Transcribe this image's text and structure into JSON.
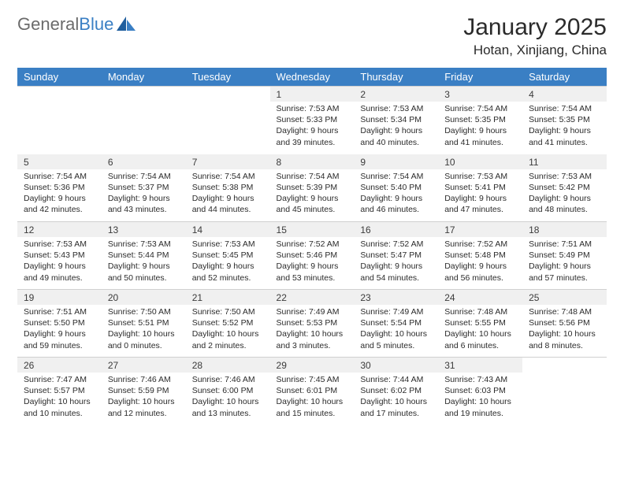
{
  "logo": {
    "text_gray": "General",
    "text_blue": "Blue"
  },
  "title": "January 2025",
  "location": "Hotan, Xinjiang, China",
  "colors": {
    "header_bg": "#3a7fc4",
    "header_fg": "#ffffff",
    "daynum_bg": "#f0f0f0",
    "text": "#2b2b2b",
    "border": "#d0d0d0"
  },
  "dow": [
    "Sunday",
    "Monday",
    "Tuesday",
    "Wednesday",
    "Thursday",
    "Friday",
    "Saturday"
  ],
  "weeks": [
    [
      null,
      null,
      null,
      {
        "n": "1",
        "sr": "7:53 AM",
        "ss": "5:33 PM",
        "dl": "9 hours and 39 minutes."
      },
      {
        "n": "2",
        "sr": "7:53 AM",
        "ss": "5:34 PM",
        "dl": "9 hours and 40 minutes."
      },
      {
        "n": "3",
        "sr": "7:54 AM",
        "ss": "5:35 PM",
        "dl": "9 hours and 41 minutes."
      },
      {
        "n": "4",
        "sr": "7:54 AM",
        "ss": "5:35 PM",
        "dl": "9 hours and 41 minutes."
      }
    ],
    [
      {
        "n": "5",
        "sr": "7:54 AM",
        "ss": "5:36 PM",
        "dl": "9 hours and 42 minutes."
      },
      {
        "n": "6",
        "sr": "7:54 AM",
        "ss": "5:37 PM",
        "dl": "9 hours and 43 minutes."
      },
      {
        "n": "7",
        "sr": "7:54 AM",
        "ss": "5:38 PM",
        "dl": "9 hours and 44 minutes."
      },
      {
        "n": "8",
        "sr": "7:54 AM",
        "ss": "5:39 PM",
        "dl": "9 hours and 45 minutes."
      },
      {
        "n": "9",
        "sr": "7:54 AM",
        "ss": "5:40 PM",
        "dl": "9 hours and 46 minutes."
      },
      {
        "n": "10",
        "sr": "7:53 AM",
        "ss": "5:41 PM",
        "dl": "9 hours and 47 minutes."
      },
      {
        "n": "11",
        "sr": "7:53 AM",
        "ss": "5:42 PM",
        "dl": "9 hours and 48 minutes."
      }
    ],
    [
      {
        "n": "12",
        "sr": "7:53 AM",
        "ss": "5:43 PM",
        "dl": "9 hours and 49 minutes."
      },
      {
        "n": "13",
        "sr": "7:53 AM",
        "ss": "5:44 PM",
        "dl": "9 hours and 50 minutes."
      },
      {
        "n": "14",
        "sr": "7:53 AM",
        "ss": "5:45 PM",
        "dl": "9 hours and 52 minutes."
      },
      {
        "n": "15",
        "sr": "7:52 AM",
        "ss": "5:46 PM",
        "dl": "9 hours and 53 minutes."
      },
      {
        "n": "16",
        "sr": "7:52 AM",
        "ss": "5:47 PM",
        "dl": "9 hours and 54 minutes."
      },
      {
        "n": "17",
        "sr": "7:52 AM",
        "ss": "5:48 PM",
        "dl": "9 hours and 56 minutes."
      },
      {
        "n": "18",
        "sr": "7:51 AM",
        "ss": "5:49 PM",
        "dl": "9 hours and 57 minutes."
      }
    ],
    [
      {
        "n": "19",
        "sr": "7:51 AM",
        "ss": "5:50 PM",
        "dl": "9 hours and 59 minutes."
      },
      {
        "n": "20",
        "sr": "7:50 AM",
        "ss": "5:51 PM",
        "dl": "10 hours and 0 minutes."
      },
      {
        "n": "21",
        "sr": "7:50 AM",
        "ss": "5:52 PM",
        "dl": "10 hours and 2 minutes."
      },
      {
        "n": "22",
        "sr": "7:49 AM",
        "ss": "5:53 PM",
        "dl": "10 hours and 3 minutes."
      },
      {
        "n": "23",
        "sr": "7:49 AM",
        "ss": "5:54 PM",
        "dl": "10 hours and 5 minutes."
      },
      {
        "n": "24",
        "sr": "7:48 AM",
        "ss": "5:55 PM",
        "dl": "10 hours and 6 minutes."
      },
      {
        "n": "25",
        "sr": "7:48 AM",
        "ss": "5:56 PM",
        "dl": "10 hours and 8 minutes."
      }
    ],
    [
      {
        "n": "26",
        "sr": "7:47 AM",
        "ss": "5:57 PM",
        "dl": "10 hours and 10 minutes."
      },
      {
        "n": "27",
        "sr": "7:46 AM",
        "ss": "5:59 PM",
        "dl": "10 hours and 12 minutes."
      },
      {
        "n": "28",
        "sr": "7:46 AM",
        "ss": "6:00 PM",
        "dl": "10 hours and 13 minutes."
      },
      {
        "n": "29",
        "sr": "7:45 AM",
        "ss": "6:01 PM",
        "dl": "10 hours and 15 minutes."
      },
      {
        "n": "30",
        "sr": "7:44 AM",
        "ss": "6:02 PM",
        "dl": "10 hours and 17 minutes."
      },
      {
        "n": "31",
        "sr": "7:43 AM",
        "ss": "6:03 PM",
        "dl": "10 hours and 19 minutes."
      },
      null
    ]
  ],
  "labels": {
    "sunrise": "Sunrise: ",
    "sunset": "Sunset: ",
    "daylight": "Daylight: "
  }
}
